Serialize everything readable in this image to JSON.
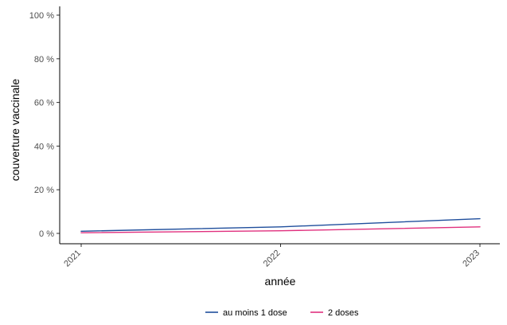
{
  "chart_data": {
    "type": "line",
    "title": "",
    "xlabel": "année",
    "ylabel": "couverture vaccinale",
    "x": [
      2021,
      2022,
      2023
    ],
    "x_tick_labels": [
      "2021",
      "2022",
      "2023"
    ],
    "xlim": [
      2021,
      2023
    ],
    "ylim": [
      0,
      100
    ],
    "y_ticks": [
      0,
      20,
      40,
      60,
      80,
      100
    ],
    "y_tick_labels": [
      "0 %",
      "20 %",
      "40 %",
      "60 %",
      "80 %",
      "100 %"
    ],
    "grid": false,
    "legend_position": "bottom",
    "series": [
      {
        "name": "au moins 1 dose",
        "color": "#1f4e9c",
        "values": [
          1.0,
          3.0,
          6.7
        ]
      },
      {
        "name": "2 doses",
        "color": "#e0307e",
        "values": [
          0.3,
          1.2,
          3.0
        ]
      }
    ]
  }
}
